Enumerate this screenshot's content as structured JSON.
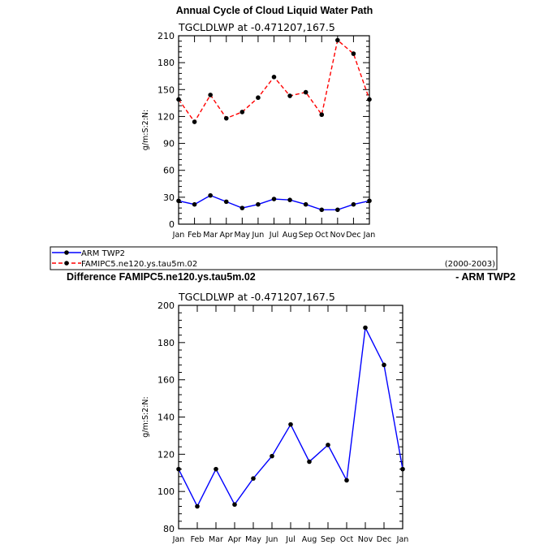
{
  "page": {
    "top_title": "Annual Cycle of Cloud Liquid Water Path",
    "diff_title_left": "Difference FAMIPC5.ne120.ys.tau5m.02",
    "diff_title_right": "- ARM TWP2"
  },
  "legend": {
    "entries": [
      {
        "label": "ARM TWP2",
        "color": "#0000ff",
        "dash": "solid"
      },
      {
        "label": "FAMIPC5.ne120.ys.tau5m.02",
        "color": "#ff0000",
        "dash": "dashed"
      }
    ],
    "period": "(2000-2003)"
  },
  "chart_data": [
    {
      "type": "line",
      "subtitle": "TGCLDLWP  at  -0.471207,167.5",
      "ylabel": "g/m:S:2:N:",
      "categories": [
        "Jan",
        "Feb",
        "Mar",
        "Apr",
        "May",
        "Jun",
        "Jul",
        "Aug",
        "Sep",
        "Oct",
        "Nov",
        "Dec",
        "Jan"
      ],
      "ylim": [
        0,
        210
      ],
      "yticks": [
        0,
        30,
        60,
        90,
        120,
        150,
        180,
        210
      ],
      "series": [
        {
          "name": "ARM TWP2",
          "color": "#0000ff",
          "dash": "solid",
          "values": [
            26,
            22,
            32,
            25,
            18,
            22,
            28,
            27,
            22,
            16,
            16,
            22,
            26
          ]
        },
        {
          "name": "FAMIPC5.ne120.ys.tau5m.02",
          "color": "#ff0000",
          "dash": "dashed",
          "values": [
            139,
            114,
            144,
            118,
            125,
            141,
            164,
            143,
            147,
            122,
            205,
            190,
            139
          ]
        }
      ]
    },
    {
      "type": "line",
      "subtitle": "TGCLDLWP  at  -0.471207,167.5",
      "ylabel": "g/m:S:2:N:",
      "categories": [
        "Jan",
        "Feb",
        "Mar",
        "Apr",
        "May",
        "Jun",
        "Jul",
        "Aug",
        "Sep",
        "Oct",
        "Nov",
        "Dec",
        "Jan"
      ],
      "ylim": [
        80,
        200
      ],
      "yticks": [
        80,
        100,
        120,
        140,
        160,
        180,
        200
      ],
      "series": [
        {
          "color": "#0000ff",
          "dash": "solid",
          "values": [
            112,
            92,
            112,
            93,
            107,
            119,
            136,
            116,
            125,
            106,
            188,
            168,
            112
          ]
        }
      ]
    }
  ]
}
